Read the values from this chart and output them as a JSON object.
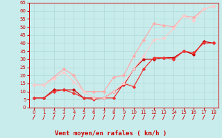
{
  "xlabel": "Vent moyen/en rafales ( km/h )",
  "bg_color": "#c8ecec",
  "grid_color": "#b0d8d8",
  "x_values": [
    0,
    1,
    2,
    3,
    4,
    5,
    6,
    7,
    8,
    9,
    10,
    11,
    12,
    13,
    14,
    15,
    16,
    17,
    18
  ],
  "series": [
    {
      "y": [
        6,
        6,
        11,
        11,
        11,
        6,
        6,
        6,
        10,
        14,
        24,
        30,
        30,
        31,
        31,
        35,
        33,
        41,
        40
      ],
      "color": "#cc0000",
      "linewidth": 0.9,
      "marker": "D",
      "markersize": 1.8
    },
    {
      "y": [
        6,
        6,
        10,
        11,
        9,
        6,
        5,
        6,
        6,
        15,
        13,
        24,
        31,
        31,
        30,
        35,
        34,
        40,
        40
      ],
      "color": "#ee3333",
      "linewidth": 0.9,
      "marker": "D",
      "markersize": 1.8
    },
    {
      "y": [
        14,
        14,
        19,
        24,
        20,
        10,
        10,
        10,
        19,
        20,
        32,
        42,
        52,
        51,
        50,
        57,
        56,
        61,
        63
      ],
      "color": "#ffaaaa",
      "linewidth": 0.9,
      "marker": "D",
      "markersize": 1.8
    },
    {
      "y": [
        14,
        14,
        18,
        22,
        16,
        10,
        6,
        6,
        10,
        15,
        24,
        32,
        42,
        43,
        49,
        57,
        54,
        61,
        63
      ],
      "color": "#ffcccc",
      "linewidth": 0.9,
      "marker": "D",
      "markersize": 1.8
    }
  ],
  "ylim": [
    0,
    65
  ],
  "yticks": [
    0,
    5,
    10,
    15,
    20,
    25,
    30,
    35,
    40,
    45,
    50,
    55,
    60,
    65
  ],
  "xticks": [
    0,
    1,
    2,
    3,
    4,
    5,
    6,
    7,
    8,
    9,
    10,
    11,
    12,
    13,
    14,
    15,
    16,
    17,
    18
  ],
  "axis_color": "#cc0000",
  "tick_color": "#cc0000",
  "xlabel_color": "#cc0000",
  "xlabel_fontsize": 6.5,
  "tick_fontsize": 5.0
}
